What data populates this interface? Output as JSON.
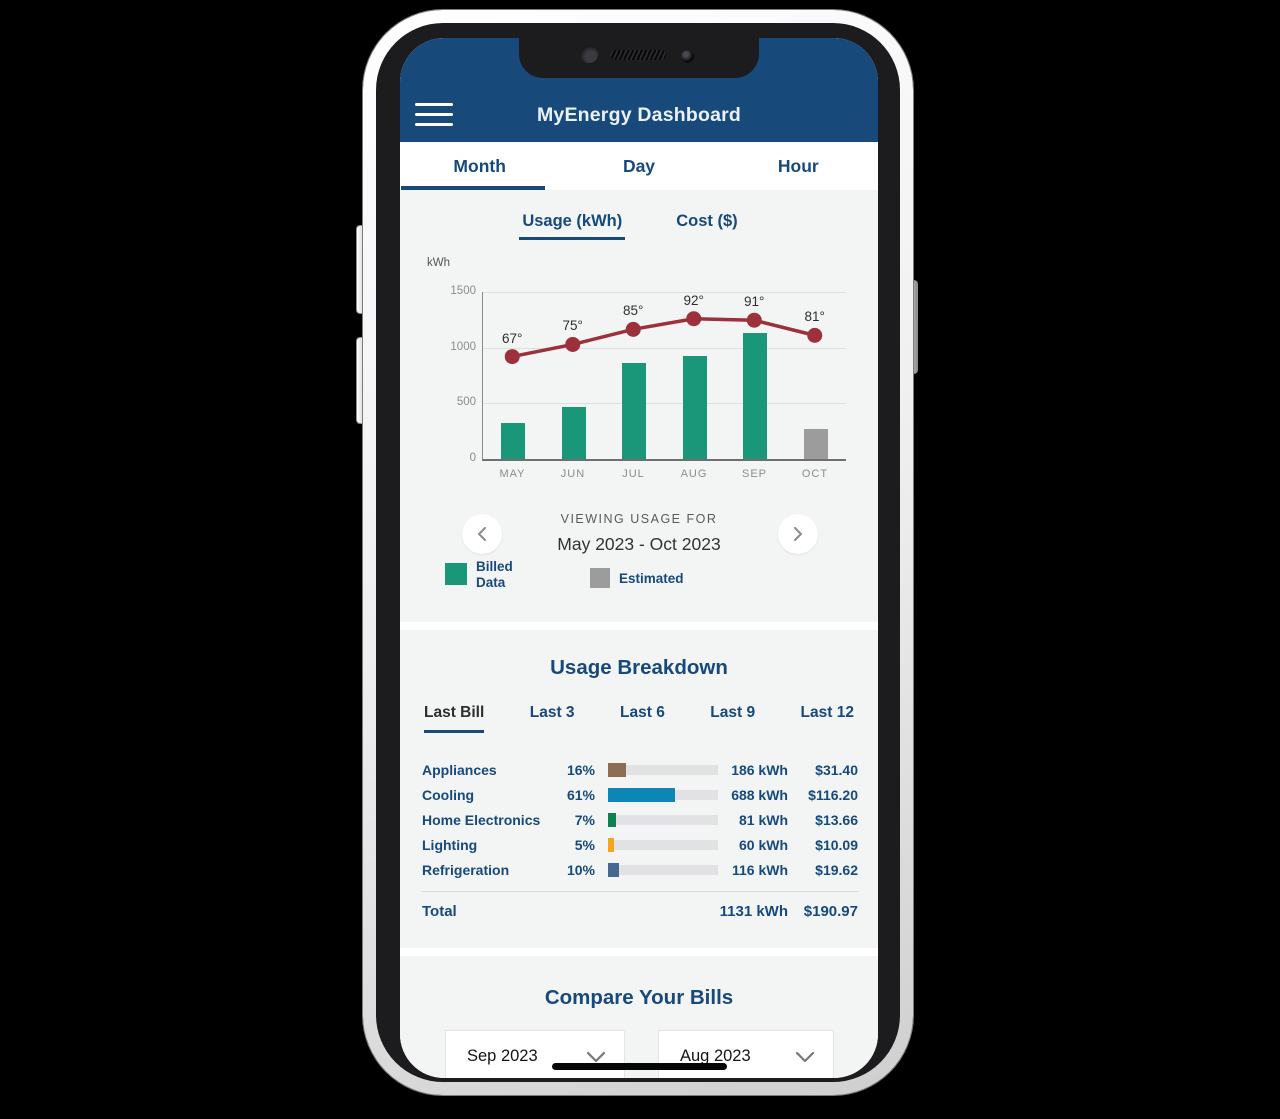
{
  "app": {
    "title": "MyEnergy Dashboard",
    "colors": {
      "navy": "#17497B",
      "billed": "#1A9679",
      "estimated": "#9C9C9C",
      "temp_line": "#9C313C",
      "section_bg": "#F3F4F4"
    }
  },
  "nav_tabs": [
    {
      "label": "Month",
      "active": true
    },
    {
      "label": "Day",
      "active": false
    },
    {
      "label": "Hour",
      "active": false
    }
  ],
  "view_tabs": [
    {
      "label": "Usage (kWh)",
      "active": true
    },
    {
      "label": "Cost ($)",
      "active": false
    }
  ],
  "chart_data": {
    "type": "bar+line",
    "title": "Monthly energy usage with average temperature",
    "categories": [
      "MAY",
      "JUN",
      "JUL",
      "AUG",
      "SEP",
      "OCT"
    ],
    "series": [
      {
        "name": "Usage",
        "type": "bar",
        "unit": "kWh",
        "values": [
          320,
          465,
          860,
          925,
          1131,
          272
        ],
        "estimated": [
          false,
          false,
          false,
          false,
          false,
          true
        ]
      },
      {
        "name": "Temperature",
        "type": "line",
        "unit": "°F",
        "values": [
          67,
          75,
          85,
          92,
          91,
          81
        ],
        "labels": [
          "67°",
          "75°",
          "85°",
          "92°",
          "91°",
          "81°"
        ]
      }
    ],
    "ylabel": "kWh",
    "yticks": [
      0,
      500,
      1000,
      1500
    ],
    "ylim": [
      0,
      1500
    ],
    "grid": true,
    "legend_position": "bottom"
  },
  "pager": {
    "eyebrow": "VIEWING USAGE FOR",
    "range": "May 2023 - Oct 2023",
    "prev_icon": "chevron-left",
    "next_icon": "chevron-right"
  },
  "legend": [
    {
      "label": "Billed Data",
      "color": "#1A9679"
    },
    {
      "label": "Estimated",
      "color": "#9C9C9C"
    }
  ],
  "usage_breakdown": {
    "title": "Usage Breakdown",
    "tabs": [
      {
        "label": "Last Bill",
        "active": true
      },
      {
        "label": "Last 3",
        "active": false
      },
      {
        "label": "Last 6",
        "active": false
      },
      {
        "label": "Last 9",
        "active": false
      },
      {
        "label": "Last 12",
        "active": false
      }
    ],
    "rows": [
      {
        "category": "Appliances",
        "percent": "16%",
        "pct": 16,
        "kwh": "186 kWh",
        "cost": "$31.40",
        "color": "#8D6E55"
      },
      {
        "category": "Cooling",
        "percent": "61%",
        "pct": 61,
        "kwh": "688 kWh",
        "cost": "$116.20",
        "color": "#0E86B5"
      },
      {
        "category": "Home Electronics",
        "percent": "7%",
        "pct": 7,
        "kwh": "81 kWh",
        "cost": "$13.66",
        "color": "#0E8150"
      },
      {
        "category": "Lighting",
        "percent": "5%",
        "pct": 5,
        "kwh": "60 kWh",
        "cost": "$10.09",
        "color": "#F0A71F"
      },
      {
        "category": "Refrigeration",
        "percent": "10%",
        "pct": 10,
        "kwh": "116 kWh",
        "cost": "$19.62",
        "color": "#47688F"
      }
    ],
    "total": {
      "label": "Total",
      "kwh": "1131 kWh",
      "cost": "$190.97"
    }
  },
  "compare": {
    "title": "Compare Your Bills",
    "selects": [
      {
        "value": "Sep 2023"
      },
      {
        "value": "Aug 2023"
      }
    ]
  }
}
